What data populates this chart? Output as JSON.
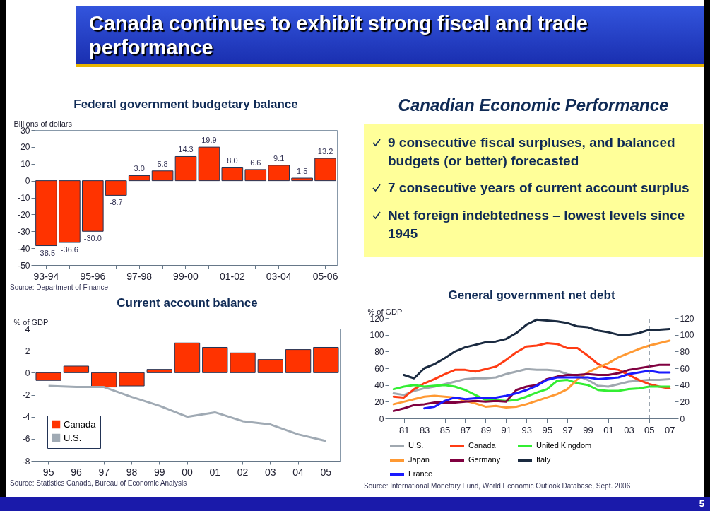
{
  "chart_data": [
    {
      "type": "other",
      "title": "Canada continues to exhibit strong fiscal and trade performance",
      "annotations": [
        "5"
      ]
    },
    {
      "type": "bar",
      "title": "Federal government budgetary balance",
      "ylabel": "Billions of dollars",
      "categories": [
        "93-94",
        null,
        "95-96",
        null,
        "97-98",
        null,
        "99-00",
        null,
        "01-02",
        null,
        "03-04",
        null,
        "05-06"
      ],
      "color": "#ff3300",
      "values": [
        -38.5,
        -36.6,
        -30.0,
        -8.7,
        3.0,
        5.8,
        14.3,
        19.9,
        8.0,
        6.6,
        9.1,
        1.5,
        13.2
      ],
      "value_labels": [
        "-38.5",
        "-36.6",
        "-30.0",
        "-8.7",
        "3.0",
        "5.8",
        "14.3",
        "19.9",
        "8.0",
        "6.6",
        "9.1",
        "1.5",
        "13.2"
      ],
      "ylim": [
        -50,
        30
      ],
      "yticks": [
        -50,
        -40,
        -30,
        -20,
        -10,
        0,
        10,
        20,
        30
      ],
      "annotations": [
        "Source: Department of Finance"
      ]
    },
    {
      "type": "other",
      "title": "Canadian Economic Performance",
      "annotations": [
        "9 consecutive fiscal surpluses, and balanced budgets (or better) forecasted",
        "7 consecutive years of current account surplus",
        "Net foreign indebtedness – lowest levels since 1945"
      ]
    },
    {
      "type": "bar",
      "title": "Current account balance",
      "ylabel": "% of GDP",
      "categories": [
        "95",
        "96",
        "97",
        "98",
        "99",
        "00",
        "01",
        "02",
        "03",
        "04",
        "05"
      ],
      "series": [
        {
          "name": "Canada",
          "type": "bar",
          "color": "#ff3300",
          "values": [
            -0.7,
            0.6,
            -1.3,
            -1.2,
            0.3,
            2.7,
            2.3,
            1.8,
            1.2,
            2.1,
            2.3
          ]
        },
        {
          "name": "U.S.",
          "type": "line",
          "color": "#a0aab4",
          "values": [
            -1.2,
            -1.3,
            -1.3,
            -2.2,
            -3.0,
            -4.0,
            -3.6,
            -4.4,
            -4.7,
            -5.6,
            -6.2
          ]
        }
      ],
      "ylim": [
        -8,
        4
      ],
      "yticks": [
        -8,
        -6,
        -4,
        -2,
        0,
        2,
        4
      ],
      "legend": "bottom left",
      "annotations": [
        "Source: Statistics Canada, Bureau of Economic Analysis"
      ]
    },
    {
      "type": "line",
      "title": "General government net debt",
      "ylabel": "% of GDP",
      "x": [
        1980,
        1981,
        1982,
        1983,
        1984,
        1985,
        1986,
        1987,
        1988,
        1989,
        1990,
        1991,
        1992,
        1993,
        1994,
        1995,
        1996,
        1997,
        1998,
        1999,
        2000,
        2001,
        2002,
        2003,
        2004,
        2005,
        2006,
        2007
      ],
      "series": [
        {
          "name": "U.S.",
          "color": "#a0a8b0",
          "values": [
            30,
            28,
            33,
            36,
            38,
            41,
            44,
            47,
            48,
            48,
            49,
            53,
            56,
            59,
            58,
            58,
            57,
            53,
            51,
            46,
            39,
            38,
            41,
            44,
            45,
            46,
            46,
            47
          ]
        },
        {
          "name": "Canada",
          "color": "#ff3c14",
          "values": [
            26,
            25,
            35,
            42,
            47,
            53,
            58,
            58,
            56,
            59,
            62,
            70,
            79,
            86,
            87,
            90,
            89,
            84,
            84,
            75,
            65,
            60,
            58,
            52,
            46,
            41,
            38,
            36
          ]
        },
        {
          "name": "United Kingdom",
          "color": "#33ee33",
          "values": [
            35,
            38,
            40,
            38,
            39,
            40,
            38,
            34,
            28,
            22,
            22,
            21,
            22,
            26,
            31,
            35,
            45,
            46,
            42,
            40,
            34,
            33,
            33,
            35,
            36,
            38,
            38,
            38
          ]
        },
        {
          "name": "Japan",
          "color": "#ff9933",
          "values": [
            17,
            20,
            23,
            26,
            27,
            26,
            25,
            21,
            18,
            14,
            15,
            13,
            14,
            17,
            21,
            25,
            29,
            35,
            47,
            55,
            61,
            66,
            73,
            78,
            83,
            87,
            90,
            93
          ]
        },
        {
          "name": "Germany",
          "color": "#800040",
          "values": [
            9,
            12,
            16,
            17,
            19,
            19,
            19,
            20,
            21,
            20,
            21,
            20,
            34,
            38,
            40,
            47,
            50,
            52,
            52,
            53,
            52,
            52,
            54,
            58,
            60,
            62,
            64,
            64
          ]
        },
        {
          "name": "Italy",
          "color": "#1a2a40",
          "values": [
            null,
            52,
            48,
            60,
            65,
            72,
            80,
            85,
            88,
            91,
            92,
            95,
            102,
            112,
            118,
            117,
            116,
            114,
            110,
            109,
            105,
            103,
            100,
            100,
            102,
            106,
            106,
            107
          ]
        },
        {
          "name": "France",
          "color": "#1a1aff",
          "values": [
            null,
            null,
            null,
            12,
            14,
            21,
            25,
            23,
            24,
            24,
            25,
            27,
            30,
            34,
            39,
            46,
            49,
            49,
            49,
            49,
            47,
            48,
            49,
            53,
            55,
            57,
            55,
            55
          ]
        }
      ],
      "xlim": [
        1979.5,
        2007.5
      ],
      "xticks": [
        {
          "value": 1981,
          "label": "81"
        },
        {
          "value": 1983,
          "label": "83"
        },
        {
          "value": 1985,
          "label": "85"
        },
        {
          "value": 1987,
          "label": "87"
        },
        {
          "value": 1989,
          "label": "89"
        },
        {
          "value": 1991,
          "label": "91"
        },
        {
          "value": 1993,
          "label": "93"
        },
        {
          "value": 1995,
          "label": "95"
        },
        {
          "value": 1997,
          "label": "97"
        },
        {
          "value": 1999,
          "label": "99"
        },
        {
          "value": 2001,
          "label": "01"
        },
        {
          "value": 2003,
          "label": "03"
        },
        {
          "value": 2005,
          "label": "05"
        },
        {
          "value": 2007,
          "label": "07"
        }
      ],
      "ylim": [
        0,
        120
      ],
      "yticks": [
        0,
        20,
        40,
        60,
        80,
        100,
        120
      ],
      "y2lim": [
        0,
        120
      ],
      "y2ticks": [
        0,
        20,
        40,
        60,
        80,
        100,
        120
      ],
      "ref_lines": [
        {
          "axis": "x",
          "value": 2005,
          "line_style": "dashed",
          "color": "#556677"
        }
      ],
      "legend": "bottom",
      "annotations": [
        "Source: International Monetary Fund, World Economic Outlook Database, Sept. 2006"
      ]
    }
  ]
}
